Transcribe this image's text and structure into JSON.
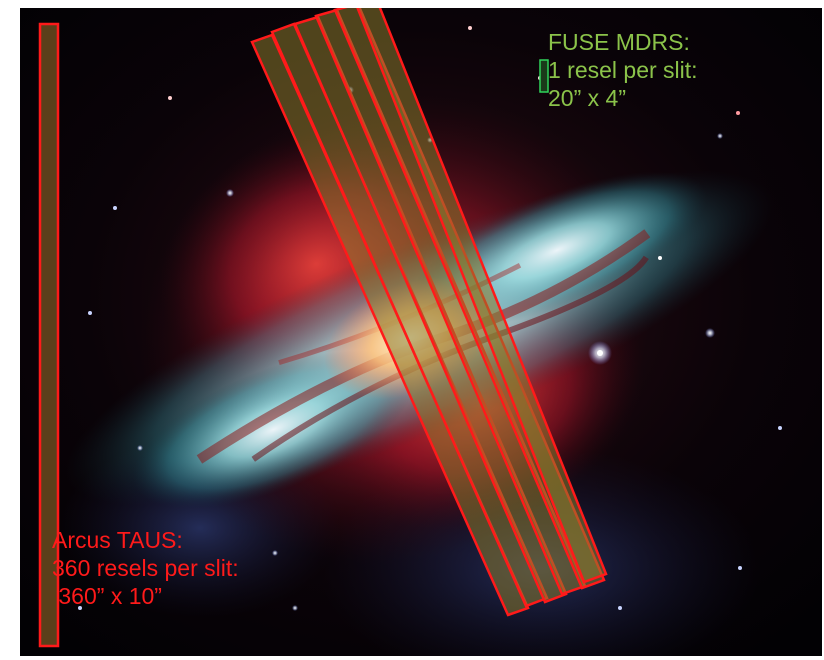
{
  "figure": {
    "description_colors": {
      "arcus": "#ff1a1a",
      "fuse": "#2fd35a",
      "fuse_text": "#8bc34a",
      "slit_fill": "#8a7a2e"
    }
  },
  "fuse": {
    "line1": "FUSE MDRS:",
    "line2": "1 resel per slit:",
    "line3": "20” x 4”"
  },
  "arcus": {
    "line1": "Arcus TAUS:",
    "line2": "360 resels per slit:",
    "line3": " 360” x 10”"
  }
}
